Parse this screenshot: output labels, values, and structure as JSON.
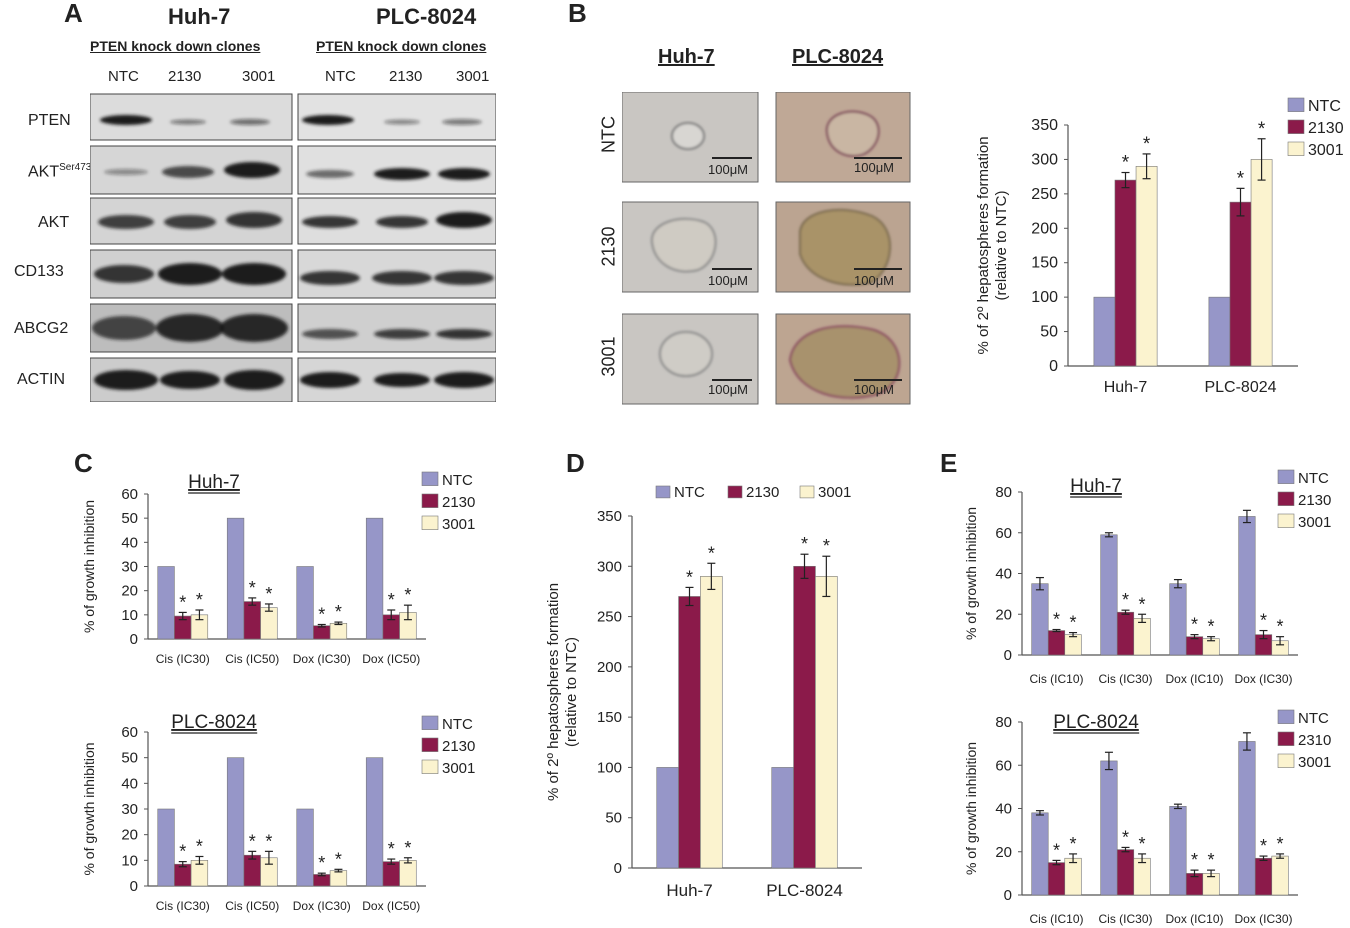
{
  "panel_a": {
    "letter": "A",
    "cell_lines": [
      "Huh-7",
      "PLC-8024"
    ],
    "subtitle": "PTEN knock down clones",
    "lanes": [
      "NTC",
      "2130",
      "3001"
    ],
    "proteins": [
      "PTEN",
      "AKT",
      "AKT",
      "CD133",
      "ABCG2",
      "ACTIN"
    ],
    "akt_phospho_sup": "Ser473"
  },
  "panel_b": {
    "letter": "B",
    "col_titles": [
      "Huh-7",
      "PLC-8024"
    ],
    "row_labels": [
      "NTC",
      "2130",
      "3001"
    ],
    "scale_bar": "100μM"
  },
  "panel_c": {
    "letter": "C"
  },
  "panel_d": {
    "letter": "D"
  },
  "panel_e": {
    "letter": "E"
  },
  "chart_data": [
    {
      "id": "B-chart",
      "type": "bar",
      "categories": [
        "Huh-7",
        "PLC-8024"
      ],
      "series": [
        {
          "name": "NTC",
          "values": [
            100,
            100
          ],
          "errors": [
            0,
            0
          ]
        },
        {
          "name": "2130",
          "values": [
            270,
            238
          ],
          "errors": [
            11,
            20
          ]
        },
        {
          "name": "3001",
          "values": [
            290,
            300
          ],
          "errors": [
            18,
            30
          ]
        }
      ],
      "asterisks": [
        [
          false,
          true,
          true
        ],
        [
          false,
          true,
          true
        ]
      ],
      "ylabel": "% of 2º hepatospheres formation\n(relative to NTC)",
      "ylim": [
        0,
        350
      ],
      "yticks": [
        0,
        50,
        100,
        150,
        200,
        250,
        300,
        350
      ],
      "title": "",
      "legend": "top-right",
      "colors": [
        "#9696c8",
        "#8b1a4a",
        "#fbf3cf"
      ]
    },
    {
      "id": "C-top",
      "type": "bar",
      "title": "Huh-7",
      "categories": [
        "Cis (IC30)",
        "Cis (IC50)",
        "Dox (IC30)",
        "Dox (IC50)"
      ],
      "series": [
        {
          "name": "NTC",
          "values": [
            30,
            50,
            30,
            50
          ],
          "errors": [
            0,
            0,
            0,
            0
          ]
        },
        {
          "name": "2130",
          "values": [
            9.5,
            15.5,
            5.5,
            10
          ],
          "errors": [
            1.5,
            1.5,
            0.5,
            2
          ]
        },
        {
          "name": "3001",
          "values": [
            10,
            13,
            6.5,
            11
          ],
          "errors": [
            2,
            1.5,
            0.5,
            3
          ]
        }
      ],
      "asterisks": [
        [
          false,
          true,
          true
        ],
        [
          false,
          true,
          true
        ],
        [
          false,
          true,
          true
        ],
        [
          false,
          true,
          true
        ]
      ],
      "ylabel": "% of growth inhibition",
      "ylim": [
        0,
        60
      ],
      "yticks": [
        0,
        10,
        20,
        30,
        40,
        50,
        60
      ],
      "legend": "top-right"
    },
    {
      "id": "C-bottom",
      "type": "bar",
      "title": "PLC-8024",
      "categories": [
        "Cis (IC30)",
        "Cis (IC50)",
        "Dox (IC30)",
        "Dox (IC50)"
      ],
      "series": [
        {
          "name": "NTC",
          "values": [
            30,
            50,
            30,
            50
          ],
          "errors": [
            0,
            0,
            0,
            0
          ]
        },
        {
          "name": "2130",
          "values": [
            8.5,
            12,
            4.5,
            9.5
          ],
          "errors": [
            1,
            1.5,
            0.5,
            1
          ]
        },
        {
          "name": "3001",
          "values": [
            10,
            11,
            6,
            10
          ],
          "errors": [
            1.5,
            2.5,
            0.5,
            1
          ]
        }
      ],
      "asterisks": [
        [
          false,
          true,
          true
        ],
        [
          false,
          true,
          true
        ],
        [
          false,
          true,
          true
        ],
        [
          false,
          true,
          true
        ]
      ],
      "ylabel": "% of growth inhibition",
      "ylim": [
        0,
        60
      ],
      "yticks": [
        0,
        10,
        20,
        30,
        40,
        50,
        60
      ],
      "legend": "top-right"
    },
    {
      "id": "D-chart",
      "type": "bar",
      "title": "",
      "categories": [
        "Huh-7",
        "PLC-8024"
      ],
      "series": [
        {
          "name": "NTC",
          "values": [
            100,
            100
          ],
          "errors": [
            0,
            0
          ]
        },
        {
          "name": "2130",
          "values": [
            270,
            300
          ],
          "errors": [
            9,
            12
          ]
        },
        {
          "name": "3001",
          "values": [
            290,
            290
          ],
          "errors": [
            13,
            20
          ]
        }
      ],
      "asterisks": [
        [
          false,
          true,
          true
        ],
        [
          false,
          true,
          true
        ]
      ],
      "ylabel": "% of 2º hepatospheres formation\n(relative to NTC)",
      "ylim": [
        0,
        350
      ],
      "yticks": [
        0,
        50,
        100,
        150,
        200,
        250,
        300,
        350
      ],
      "legend": "top"
    },
    {
      "id": "E-top",
      "type": "bar",
      "title": "Huh-7",
      "categories": [
        "Cis (IC10)",
        "Cis (IC30)",
        "Dox (IC10)",
        "Dox (IC30)"
      ],
      "series": [
        {
          "name": "NTC",
          "values": [
            35,
            59,
            35,
            68
          ],
          "errors": [
            3,
            1,
            2,
            3
          ]
        },
        {
          "name": "2130",
          "values": [
            12,
            21,
            9,
            10
          ],
          "errors": [
            0.5,
            1,
            1,
            2
          ]
        },
        {
          "name": "3001",
          "values": [
            10,
            18,
            8,
            7
          ],
          "errors": [
            1,
            2,
            1,
            2
          ]
        }
      ],
      "asterisks": [
        [
          false,
          true,
          true
        ],
        [
          false,
          true,
          true
        ],
        [
          false,
          true,
          true
        ],
        [
          false,
          true,
          true
        ]
      ],
      "ylabel": "% of growth inhibition",
      "ylim": [
        0,
        80
      ],
      "yticks": [
        0,
        20,
        40,
        60,
        80
      ],
      "legend": "top-right"
    },
    {
      "id": "E-bottom",
      "type": "bar",
      "title": "PLC-8024",
      "categories": [
        "Cis (IC10)",
        "Cis (IC30)",
        "Dox (IC10)",
        "Dox (IC30)"
      ],
      "series": [
        {
          "name": "NTC",
          "values": [
            38,
            62,
            41,
            71
          ],
          "errors": [
            1,
            4,
            1,
            4
          ]
        },
        {
          "name": "2310",
          "values": [
            15,
            21,
            10,
            17
          ],
          "errors": [
            1,
            1,
            1.5,
            1
          ]
        },
        {
          "name": "3001",
          "values": [
            17,
            17,
            10,
            18
          ],
          "errors": [
            2,
            2,
            1.5,
            1
          ]
        }
      ],
      "asterisks": [
        [
          false,
          true,
          true
        ],
        [
          false,
          true,
          true
        ],
        [
          false,
          true,
          true
        ],
        [
          false,
          true,
          true
        ]
      ],
      "ylabel": "% of growth inhibition",
      "ylim": [
        0,
        80
      ],
      "yticks": [
        0,
        20,
        40,
        60,
        80
      ],
      "legend": "top-right"
    }
  ]
}
